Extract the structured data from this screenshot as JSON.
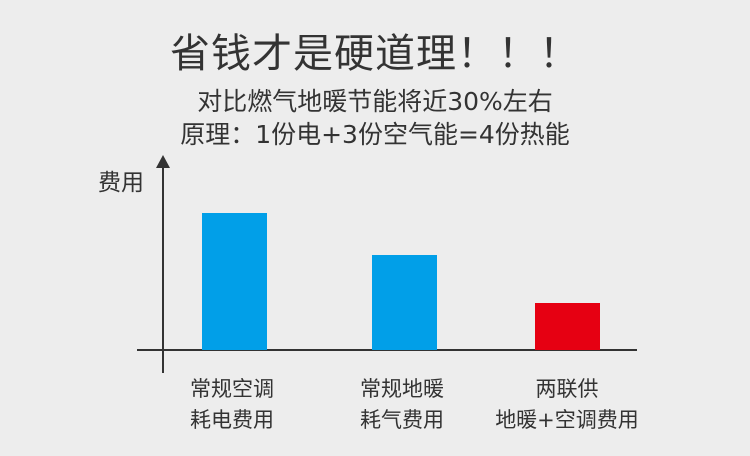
{
  "page": {
    "background_color": "#ededed",
    "text_color": "#333333",
    "axis_color": "#333333"
  },
  "header": {
    "title": "省钱才是硬道理！！！",
    "subtitle_line1": "对比燃气地暖节能将近30%左右",
    "subtitle_line2": "原理：1份电+3份空气能=4份热能"
  },
  "chart_data": {
    "type": "bar",
    "title": "省钱才是硬道理！！！",
    "xlabel": "",
    "ylabel": "费用",
    "categories": [
      "常规空调 耗电费用",
      "常规地暖 耗气费用",
      "两联供 地暖+空调费用"
    ],
    "values": [
      100,
      69,
      34
    ],
    "values_estimated": true,
    "ylim": [
      0,
      115
    ],
    "grid": false,
    "legend": false,
    "y_axis_arrow": true,
    "bar_colors": [
      "#019fe8",
      "#019fe8",
      "#e60012"
    ],
    "bars": [
      {
        "label_line1": "常规空调",
        "label_line2": "耗电费用",
        "value": 100,
        "color": "#019fe8"
      },
      {
        "label_line1": "常规地暖",
        "label_line2": "耗气费用",
        "value": 69,
        "color": "#019fe8"
      },
      {
        "label_line1": "两联供",
        "label_line2": "地暖+空调费用",
        "value": 34,
        "color": "#e60012"
      }
    ]
  }
}
